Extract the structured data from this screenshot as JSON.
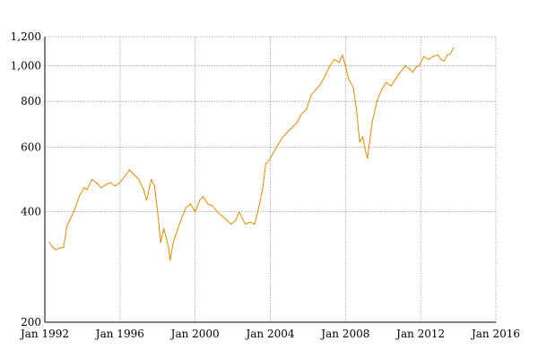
{
  "chart_data": {
    "type": "line",
    "title": "",
    "xlabel": "",
    "ylabel": "",
    "y_scale": "log",
    "ylim": [
      200,
      1200
    ],
    "xlim": [
      "1992-01",
      "2016-01"
    ],
    "grid": true,
    "x_ticks": [
      {
        "date": "1992-01",
        "label": "Jan 1992"
      },
      {
        "date": "1996-01",
        "label": "Jan 1996"
      },
      {
        "date": "2000-01",
        "label": "Jan 2000"
      },
      {
        "date": "2004-01",
        "label": "Jan 2004"
      },
      {
        "date": "2008-01",
        "label": "Jan 2008"
      },
      {
        "date": "2012-01",
        "label": "Jan 2012"
      },
      {
        "date": "2016-01",
        "label": "Jan 2016"
      }
    ],
    "y_ticks": [
      {
        "value": 200,
        "label": "200"
      },
      {
        "value": 400,
        "label": "400"
      },
      {
        "value": 600,
        "label": "600"
      },
      {
        "value": 800,
        "label": "800"
      },
      {
        "value": 1000,
        "label": "1,000"
      },
      {
        "value": 1200,
        "label": "1,200"
      }
    ],
    "series": [
      {
        "color": "#e08c00",
        "points": [
          [
            "1992-04",
            330
          ],
          [
            "1992-06",
            320
          ],
          [
            "1992-08",
            315
          ],
          [
            "1992-10",
            318
          ],
          [
            "1993-01",
            320
          ],
          [
            "1993-03",
            365
          ],
          [
            "1993-05",
            380
          ],
          [
            "1993-08",
            405
          ],
          [
            "1993-11",
            440
          ],
          [
            "1994-02",
            465
          ],
          [
            "1994-04",
            460
          ],
          [
            "1994-07",
            490
          ],
          [
            "1994-10",
            480
          ],
          [
            "1995-01",
            465
          ],
          [
            "1995-04",
            475
          ],
          [
            "1995-07",
            480
          ],
          [
            "1995-10",
            470
          ],
          [
            "1996-01",
            480
          ],
          [
            "1996-04",
            500
          ],
          [
            "1996-07",
            520
          ],
          [
            "1996-10",
            505
          ],
          [
            "1997-01",
            490
          ],
          [
            "1997-04",
            460
          ],
          [
            "1997-06",
            430
          ],
          [
            "1997-09",
            490
          ],
          [
            "1997-11",
            470
          ],
          [
            "1998-01",
            400
          ],
          [
            "1998-03",
            330
          ],
          [
            "1998-05",
            360
          ],
          [
            "1998-08",
            320
          ],
          [
            "1998-09",
            295
          ],
          [
            "1998-11",
            330
          ],
          [
            "1999-01",
            350
          ],
          [
            "1999-04",
            380
          ],
          [
            "1999-07",
            410
          ],
          [
            "1999-10",
            420
          ],
          [
            "2000-01",
            400
          ],
          [
            "2000-04",
            430
          ],
          [
            "2000-06",
            440
          ],
          [
            "2000-09",
            420
          ],
          [
            "2000-12",
            415
          ],
          [
            "2001-03",
            400
          ],
          [
            "2001-06",
            390
          ],
          [
            "2001-09",
            380
          ],
          [
            "2001-12",
            370
          ],
          [
            "2002-03",
            380
          ],
          [
            "2002-05",
            400
          ],
          [
            "2002-07",
            385
          ],
          [
            "2002-09",
            370
          ],
          [
            "2002-12",
            375
          ],
          [
            "2003-03",
            370
          ],
          [
            "2003-05",
            400
          ],
          [
            "2003-08",
            460
          ],
          [
            "2003-10",
            540
          ],
          [
            "2004-01",
            560
          ],
          [
            "2004-03",
            580
          ],
          [
            "2004-06",
            610
          ],
          [
            "2004-09",
            640
          ],
          [
            "2004-12",
            660
          ],
          [
            "2005-03",
            680
          ],
          [
            "2005-06",
            700
          ],
          [
            "2005-09",
            740
          ],
          [
            "2005-12",
            760
          ],
          [
            "2006-03",
            830
          ],
          [
            "2006-06",
            860
          ],
          [
            "2006-09",
            890
          ],
          [
            "2006-12",
            940
          ],
          [
            "2007-03",
            1000
          ],
          [
            "2007-06",
            1040
          ],
          [
            "2007-09",
            1020
          ],
          [
            "2007-11",
            1070
          ],
          [
            "2008-01",
            1000
          ],
          [
            "2008-03",
            920
          ],
          [
            "2008-06",
            870
          ],
          [
            "2008-08",
            760
          ],
          [
            "2008-10",
            620
          ],
          [
            "2008-12",
            640
          ],
          [
            "2009-02",
            580
          ],
          [
            "2009-03",
            560
          ],
          [
            "2009-06",
            700
          ],
          [
            "2009-09",
            800
          ],
          [
            "2009-12",
            860
          ],
          [
            "2010-03",
            900
          ],
          [
            "2010-06",
            880
          ],
          [
            "2010-09",
            920
          ],
          [
            "2010-12",
            960
          ],
          [
            "2011-03",
            1000
          ],
          [
            "2011-06",
            980
          ],
          [
            "2011-08",
            960
          ],
          [
            "2011-10",
            990
          ],
          [
            "2011-12",
            1000
          ],
          [
            "2012-03",
            1060
          ],
          [
            "2012-06",
            1040
          ],
          [
            "2012-09",
            1060
          ],
          [
            "2012-12",
            1070
          ],
          [
            "2013-02",
            1040
          ],
          [
            "2013-04",
            1030
          ],
          [
            "2013-06",
            1070
          ],
          [
            "2013-08",
            1080
          ],
          [
            "2013-09",
            1100
          ],
          [
            "2013-10",
            1120
          ]
        ]
      }
    ]
  }
}
